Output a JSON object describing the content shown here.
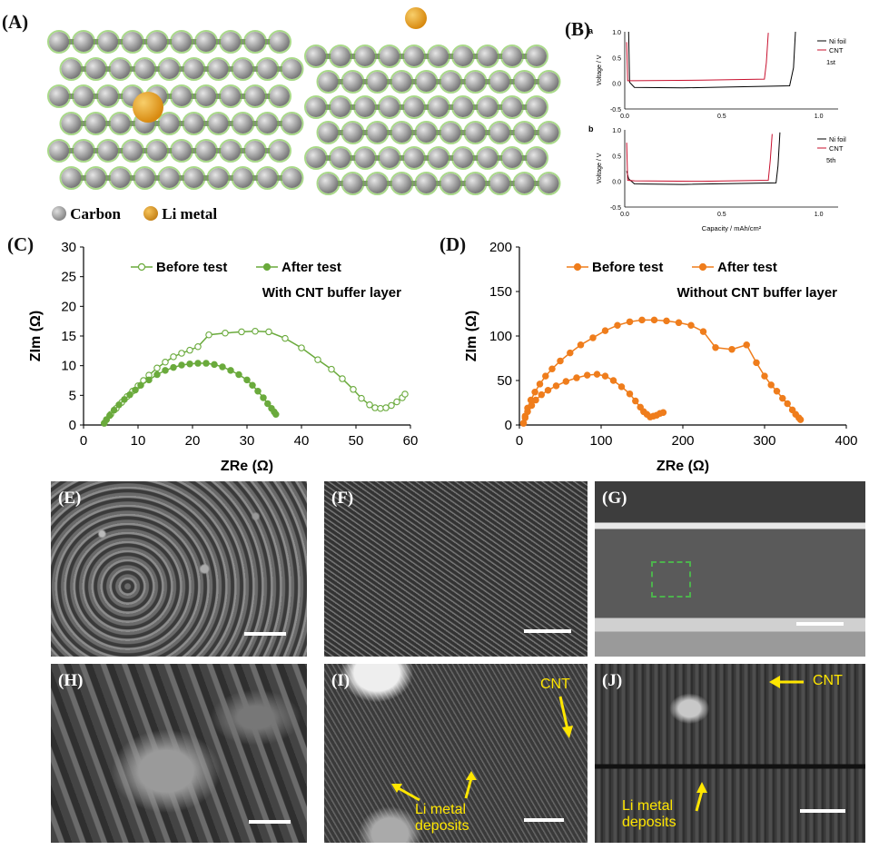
{
  "panel_labels": {
    "A": "(A)",
    "B": "(B)",
    "C": "(C)",
    "D": "(D)",
    "E": "(E)",
    "F": "(F)",
    "G": "(G)",
    "H": "(H)",
    "I": "(I)",
    "J": "(J)"
  },
  "panelA": {
    "legend_carbon": "Carbon",
    "legend_li": "Li metal",
    "carbon_color": "#7a7a7a",
    "li_color": "#d88a10",
    "halo_color": "#6fbf3a"
  },
  "panelB": {
    "sub_a": "a",
    "sub_b": "b",
    "ylabel": "Voltage / V",
    "xlabel": "Capacity / mAh/cm²",
    "legend": [
      "Ni foil",
      "CNT"
    ],
    "cycle_a": "1st",
    "cycle_b": "5th",
    "yticks": [
      "1.0",
      "0.5",
      "0.0",
      "-0.5"
    ],
    "xticks": [
      "0.0",
      "0.5",
      "1.0"
    ]
  },
  "panelI": {
    "cnt": "CNT",
    "li1": "Li metal",
    "li2": "deposits"
  },
  "panelJ": {
    "cnt": "CNT",
    "li1": "Li metal",
    "li2": "deposits"
  },
  "chart_data": [
    {
      "type": "scatter",
      "annotation": "With CNT buffer layer",
      "xlabel": "ZRe (Ω)",
      "ylabel": "ZIm (Ω)",
      "xlim": [
        0,
        60
      ],
      "ylim": [
        0,
        30
      ],
      "xticks": [
        0,
        10,
        20,
        30,
        40,
        50,
        60
      ],
      "yticks": [
        0,
        5,
        10,
        15,
        20,
        25,
        30
      ],
      "legend_position": "top",
      "color": "#6aaa3c",
      "series": [
        {
          "name": "Before test",
          "marker": "open",
          "x": [
            3.8,
            4.2,
            5,
            6,
            7,
            8,
            9,
            10,
            11,
            12,
            13.5,
            15,
            16.5,
            18,
            19.5,
            21,
            23,
            26,
            29,
            31.5,
            34,
            37,
            40,
            43,
            45.5,
            47.5,
            49.5,
            51,
            52.5,
            53.5,
            54.5,
            55.5,
            56.5,
            57.5,
            58.5,
            59
          ],
          "y": [
            0.3,
            0.9,
            1.8,
            2.8,
            3.8,
            4.8,
            5.7,
            6.6,
            7.5,
            8.4,
            9.6,
            10.6,
            11.5,
            12.1,
            12.6,
            13.2,
            15.2,
            15.5,
            15.7,
            15.8,
            15.7,
            14.6,
            13,
            11,
            9.4,
            7.8,
            6,
            4.5,
            3.4,
            2.9,
            2.8,
            2.9,
            3.3,
            3.9,
            4.6,
            5.2
          ]
        },
        {
          "name": "After test",
          "marker": "filled",
          "x": [
            3.8,
            4.2,
            4.8,
            5.6,
            6.5,
            7.5,
            8.5,
            9.5,
            10.5,
            12,
            13.5,
            15,
            16.5,
            18,
            19.5,
            21,
            22.5,
            24,
            25.5,
            27,
            28.5,
            30,
            31,
            32,
            33,
            33.8,
            34.5,
            35,
            35.3
          ],
          "y": [
            0.3,
            0.9,
            1.6,
            2.5,
            3.4,
            4.3,
            5.1,
            5.9,
            6.7,
            7.6,
            8.5,
            9.2,
            9.7,
            10.1,
            10.3,
            10.4,
            10.4,
            10.2,
            9.8,
            9.2,
            8.5,
            7.6,
            6.7,
            5.7,
            4.6,
            3.6,
            2.8,
            2.2,
            1.8
          ]
        }
      ]
    },
    {
      "type": "scatter",
      "annotation": "Without CNT buffer layer",
      "xlabel": "ZRe (Ω)",
      "ylabel": "ZIm (Ω)",
      "xlim": [
        0,
        400
      ],
      "ylim": [
        0,
        200
      ],
      "xticks": [
        0,
        100,
        200,
        300,
        400
      ],
      "yticks": [
        0,
        50,
        100,
        150,
        200
      ],
      "legend_position": "top",
      "color": "#ef7d1c",
      "series": [
        {
          "name": "Before test",
          "marker": "filled",
          "x": [
            5,
            7,
            10,
            14,
            19,
            25,
            32,
            40,
            50,
            62,
            75,
            90,
            105,
            120,
            135,
            150,
            165,
            180,
            195,
            210,
            225,
            240,
            260,
            278,
            290,
            300,
            308,
            315,
            322,
            328,
            334,
            338,
            342,
            344
          ],
          "y": [
            2,
            10,
            19,
            28,
            37,
            46,
            55,
            63,
            72,
            81,
            90,
            98,
            106,
            112,
            116,
            118,
            118,
            117,
            115,
            112,
            105,
            87,
            85,
            90,
            70,
            55,
            45,
            38,
            30,
            24,
            17,
            12,
            8,
            6
          ]
        },
        {
          "name": "After test",
          "marker": "filled",
          "x": [
            5,
            7,
            10,
            15,
            20,
            27,
            35,
            45,
            57,
            70,
            83,
            95,
            105,
            115,
            125,
            135,
            142,
            148,
            152,
            156,
            160,
            164,
            168,
            172,
            176
          ],
          "y": [
            2,
            8,
            15,
            22,
            28,
            34,
            39,
            44,
            49,
            53,
            56,
            57,
            55,
            50,
            43,
            35,
            27,
            20,
            15,
            12,
            9,
            10,
            11,
            13,
            14
          ]
        }
      ]
    }
  ]
}
